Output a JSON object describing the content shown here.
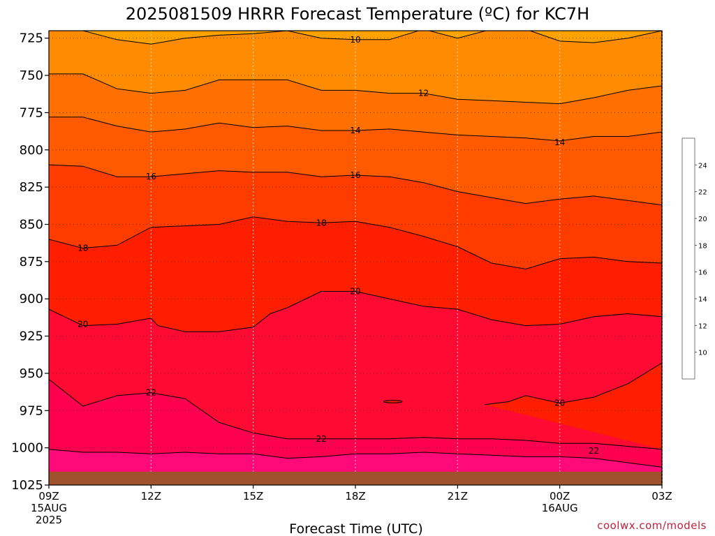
{
  "chart_data": {
    "type": "filled-contour",
    "title": "2025081509 HRRR Forecast Temperature (ºC) for KC7H",
    "xlabel": "Forecast Time (UTC)",
    "ylabel": "",
    "x_hours": [
      0,
      18
    ],
    "y_range": [
      720,
      1025
    ],
    "y_ticks": [
      725,
      750,
      775,
      800,
      825,
      850,
      875,
      900,
      925,
      950,
      975,
      1000,
      1025
    ],
    "x_ticks": [
      {
        "hour": 0,
        "lines": [
          "09Z",
          "15AUG",
          "2025"
        ]
      },
      {
        "hour": 3,
        "lines": [
          "12Z"
        ]
      },
      {
        "hour": 6,
        "lines": [
          "15Z"
        ]
      },
      {
        "hour": 9,
        "lines": [
          "18Z"
        ]
      },
      {
        "hour": 12,
        "lines": [
          "21Z"
        ]
      },
      {
        "hour": 15,
        "lines": [
          "00Z",
          "16AUG"
        ]
      },
      {
        "hour": 18,
        "lines": [
          "03Z"
        ]
      }
    ],
    "colorbar": {
      "levels": [
        8,
        10,
        12,
        14,
        16,
        18,
        20,
        22,
        24,
        26
      ],
      "labels": [
        "10",
        "12",
        "14",
        "16",
        "18",
        "20",
        "22",
        "24"
      ],
      "colors": [
        "#ffa200",
        "#ff8c00",
        "#ff7000",
        "#ff5a00",
        "#ff3c00",
        "#ff1e00",
        "#ff0a32",
        "#ff0050",
        "#ff0a78"
      ]
    },
    "contours": [
      {
        "value": 10,
        "label_at": [
          [
            9,
            726
          ]
        ],
        "points": [
          [
            0,
            719
          ],
          [
            1,
            720
          ],
          [
            2,
            726
          ],
          [
            3,
            729
          ],
          [
            4,
            725
          ],
          [
            5,
            723
          ],
          [
            6,
            722
          ],
          [
            7,
            720
          ],
          [
            8,
            725
          ],
          [
            9,
            726
          ],
          [
            10,
            726
          ],
          [
            11,
            719
          ],
          [
            12,
            725
          ],
          [
            13,
            719
          ],
          [
            14,
            719
          ],
          [
            15,
            727
          ],
          [
            16,
            728
          ],
          [
            17,
            725
          ],
          [
            18,
            720
          ]
        ]
      },
      {
        "value": 12,
        "label_at": [
          [
            11,
            762
          ]
        ],
        "points": [
          [
            0,
            749
          ],
          [
            1,
            749
          ],
          [
            2,
            759
          ],
          [
            3,
            762
          ],
          [
            4,
            760
          ],
          [
            5,
            753
          ],
          [
            6,
            753
          ],
          [
            7,
            753
          ],
          [
            8,
            760
          ],
          [
            9,
            760
          ],
          [
            10,
            762
          ],
          [
            11,
            762
          ],
          [
            12,
            766
          ],
          [
            13,
            767
          ],
          [
            14,
            768
          ],
          [
            15,
            769
          ],
          [
            16,
            765
          ],
          [
            17,
            760
          ],
          [
            18,
            757
          ]
        ]
      },
      {
        "value": 14,
        "label_at": [
          [
            9,
            787
          ],
          [
            15,
            795
          ]
        ],
        "points": [
          [
            0,
            778
          ],
          [
            1,
            778
          ],
          [
            2,
            784
          ],
          [
            3,
            788
          ],
          [
            4,
            786
          ],
          [
            5,
            782
          ],
          [
            6,
            785
          ],
          [
            7,
            784
          ],
          [
            8,
            787
          ],
          [
            9,
            787
          ],
          [
            10,
            786
          ],
          [
            11,
            788
          ],
          [
            12,
            790
          ],
          [
            13,
            791
          ],
          [
            14,
            792
          ],
          [
            15,
            794
          ],
          [
            16,
            791
          ],
          [
            17,
            791
          ],
          [
            18,
            788
          ]
        ]
      },
      {
        "value": 16,
        "label_at": [
          [
            3,
            818
          ],
          [
            9,
            817
          ]
        ],
        "points": [
          [
            0,
            810
          ],
          [
            1,
            811
          ],
          [
            2,
            818
          ],
          [
            3,
            818
          ],
          [
            4,
            816
          ],
          [
            5,
            814
          ],
          [
            6,
            815
          ],
          [
            7,
            815
          ],
          [
            8,
            818
          ],
          [
            9,
            817
          ],
          [
            10,
            818
          ],
          [
            11,
            822
          ],
          [
            12,
            828
          ],
          [
            13,
            832
          ],
          [
            14,
            836
          ],
          [
            15,
            833
          ],
          [
            16,
            831
          ],
          [
            17,
            834
          ],
          [
            18,
            837
          ]
        ]
      },
      {
        "value": 18,
        "label_at": [
          [
            1,
            866
          ],
          [
            8,
            849
          ]
        ],
        "points": [
          [
            0,
            860
          ],
          [
            1,
            866
          ],
          [
            2,
            864
          ],
          [
            3,
            852
          ],
          [
            4,
            851
          ],
          [
            5,
            850
          ],
          [
            6,
            845
          ],
          [
            7,
            848
          ],
          [
            8,
            849
          ],
          [
            9,
            848
          ],
          [
            10,
            852
          ],
          [
            11,
            858
          ],
          [
            12,
            865
          ],
          [
            13,
            876
          ],
          [
            14,
            880
          ],
          [
            15,
            873
          ],
          [
            16,
            872
          ],
          [
            17,
            875
          ],
          [
            18,
            876
          ]
        ]
      },
      {
        "value": 20,
        "label_at": [
          [
            1,
            917
          ],
          [
            9,
            895
          ]
        ],
        "points": [
          [
            0,
            907
          ],
          [
            1,
            918
          ],
          [
            2,
            917
          ],
          [
            3,
            913
          ],
          [
            3.2,
            918
          ],
          [
            4,
            922
          ],
          [
            5,
            922
          ],
          [
            6,
            919
          ],
          [
            6.5,
            910
          ],
          [
            7,
            906
          ],
          [
            8,
            895
          ],
          [
            9,
            895
          ],
          [
            10,
            900
          ],
          [
            11,
            905
          ],
          [
            12,
            907
          ],
          [
            13,
            914
          ],
          [
            14,
            918
          ],
          [
            15,
            917
          ],
          [
            16,
            912
          ],
          [
            17,
            910
          ],
          [
            18,
            912
          ]
        ]
      },
      {
        "value": 20,
        "label_at": [
          [
            15,
            970
          ]
        ],
        "points": [
          [
            12.8,
            971
          ],
          [
            13.5,
            969
          ],
          [
            14,
            965
          ],
          [
            15,
            970
          ],
          [
            16,
            966
          ],
          [
            17,
            957
          ],
          [
            18,
            943
          ]
        ]
      },
      {
        "value": 22,
        "label_at": [
          [
            3,
            963
          ],
          [
            8,
            994
          ]
        ],
        "points": [
          [
            0,
            954
          ],
          [
            1,
            972
          ],
          [
            2,
            965
          ],
          [
            3,
            963
          ],
          [
            4,
            967
          ],
          [
            5,
            983
          ],
          [
            6,
            990
          ],
          [
            7,
            994
          ],
          [
            8,
            994
          ],
          [
            9,
            994
          ],
          [
            10,
            994
          ],
          [
            11,
            993
          ],
          [
            12,
            994
          ],
          [
            13,
            994
          ],
          [
            14,
            995
          ],
          [
            15,
            997
          ],
          [
            16,
            997
          ],
          [
            17,
            999
          ],
          [
            18,
            1001
          ]
        ]
      },
      {
        "value": 22,
        "label_at": [
          [
            16,
            1002
          ]
        ],
        "points": [
          [
            0,
            1001
          ],
          [
            1,
            1003
          ],
          [
            2,
            1003
          ],
          [
            3,
            1004
          ],
          [
            4,
            1003
          ],
          [
            5,
            1004
          ],
          [
            6,
            1004
          ],
          [
            7,
            1007
          ],
          [
            8,
            1006
          ],
          [
            9,
            1004
          ],
          [
            10,
            1004
          ],
          [
            11,
            1003
          ],
          [
            12,
            1004
          ],
          [
            13,
            1005
          ],
          [
            14,
            1006
          ],
          [
            15,
            1006
          ],
          [
            16,
            1007
          ],
          [
            17,
            1010
          ],
          [
            18,
            1013
          ]
        ]
      }
    ],
    "blob": {
      "hour": 10.1,
      "pressure": 969,
      "rx_hours": 0.27,
      "ry": 0.8
    },
    "ground_level": 1016,
    "ground_color": "#a0522d"
  },
  "colorbar_labels": [
    "10",
    "12",
    "14",
    "16",
    "18",
    "20",
    "22",
    "24"
  ],
  "credit": "coolwx.com/models"
}
